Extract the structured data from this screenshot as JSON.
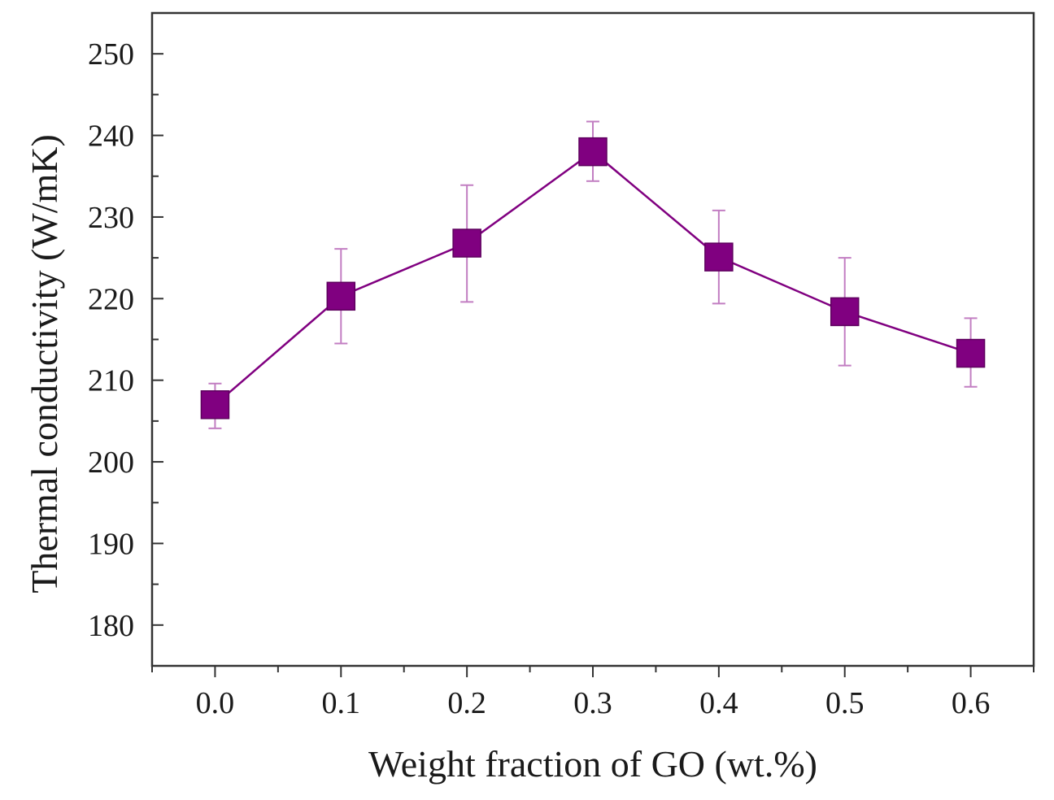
{
  "chart_data": {
    "type": "line",
    "title": "",
    "xlabel": "Weight fraction of GO (wt.%)",
    "ylabel": "Thermal conductivity (W/mK)",
    "xlim": [
      -0.05,
      0.65
    ],
    "ylim": [
      175,
      255
    ],
    "x_ticks": [
      0.0,
      0.1,
      0.2,
      0.3,
      0.4,
      0.5,
      0.6
    ],
    "x_tick_labels": [
      "0.0",
      "0.1",
      "0.2",
      "0.3",
      "0.4",
      "0.5",
      "0.6"
    ],
    "y_ticks": [
      180,
      190,
      200,
      210,
      220,
      230,
      240,
      250
    ],
    "y_tick_labels": [
      "180",
      "190",
      "200",
      "210",
      "220",
      "230",
      "240",
      "250"
    ],
    "grid": false,
    "legend": "none",
    "series": [
      {
        "name": "Thermal conductivity",
        "color": "#800080",
        "marker": "square",
        "x": [
          0.0,
          0.1,
          0.2,
          0.3,
          0.4,
          0.5,
          0.6
        ],
        "y": [
          207.0,
          220.3,
          226.8,
          238.0,
          225.1,
          218.4,
          213.3
        ],
        "error_low": [
          204.1,
          214.5,
          219.6,
          234.4,
          219.4,
          211.8,
          209.2
        ],
        "error_high": [
          209.6,
          226.1,
          233.9,
          241.7,
          230.8,
          225.0,
          217.6
        ]
      }
    ]
  }
}
